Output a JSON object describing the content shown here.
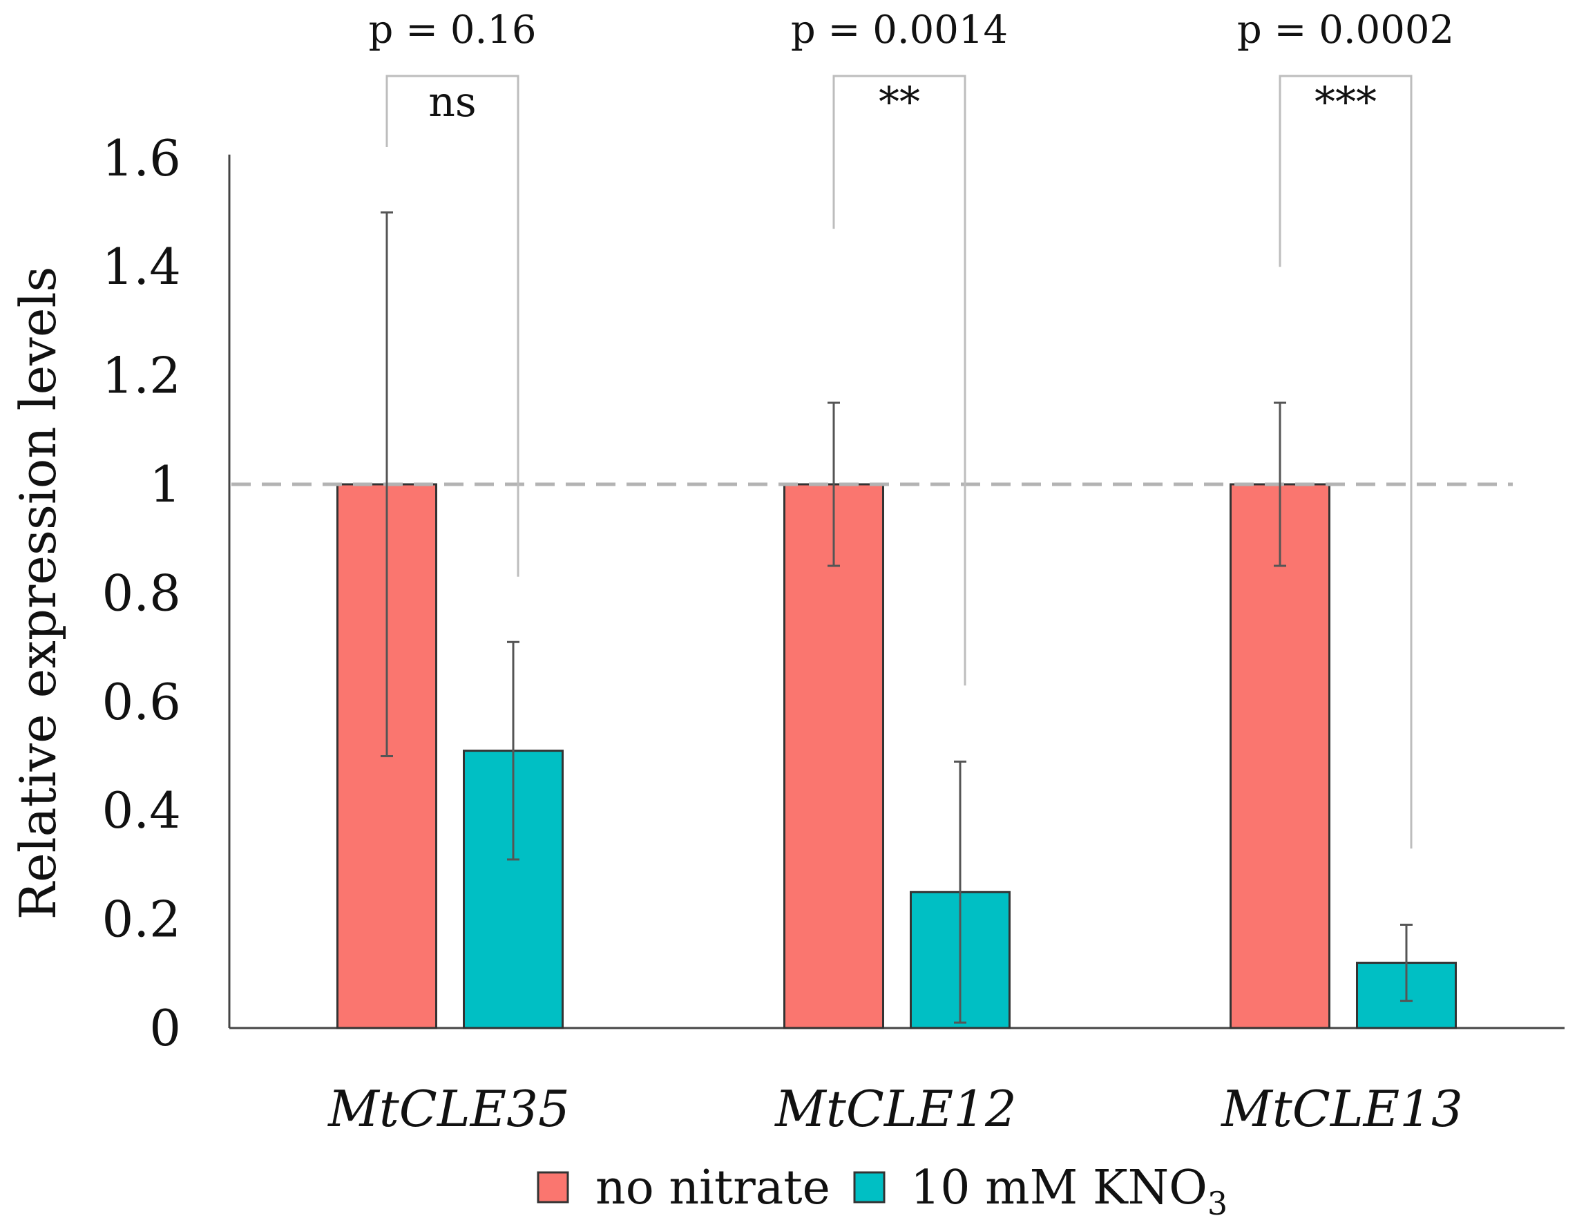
{
  "chart_data": {
    "type": "bar",
    "title": "",
    "xlabel": "",
    "ylabel": "Relative expression levels",
    "ylim": [
      0,
      1.6
    ],
    "yticks": [
      "0",
      "0.2",
      "0.4",
      "0.6",
      "0.8",
      "1",
      "1.2",
      "1.4",
      "1.6"
    ],
    "ytick_values": [
      0,
      0.2,
      0.4,
      0.6,
      0.8,
      1.0,
      1.2,
      1.4,
      1.6
    ],
    "categories": [
      "MtCLE35",
      "MtCLE12",
      "MtCLE13"
    ],
    "series": [
      {
        "name": "no nitrate",
        "color": "#fa766f",
        "values": [
          1.0,
          1.0,
          1.0
        ],
        "err_low": [
          0.5,
          0.85,
          0.85
        ],
        "err_high": [
          1.5,
          1.15,
          1.15
        ]
      },
      {
        "name": "10 mM KNO",
        "name_subscript": "3",
        "color": "#00bfc4",
        "values": [
          0.51,
          0.25,
          0.12
        ],
        "err_low": [
          0.31,
          0.01,
          0.05
        ],
        "err_high": [
          0.71,
          0.49,
          0.19
        ]
      }
    ],
    "reference_line": {
      "y": 1.0,
      "style": "dashed"
    },
    "comparisons": [
      {
        "p_label": "p = 0.16",
        "significance": "ns",
        "y_from": 1.62,
        "y_to": 0.83
      },
      {
        "p_label": "p = 0.0014",
        "significance": "**",
        "y_from": 1.47,
        "y_to": 0.63
      },
      {
        "p_label": "p = 0.0002",
        "significance": "***",
        "y_from": 1.4,
        "y_to": 0.33
      }
    ],
    "legend_position": "bottom",
    "grid": false
  }
}
